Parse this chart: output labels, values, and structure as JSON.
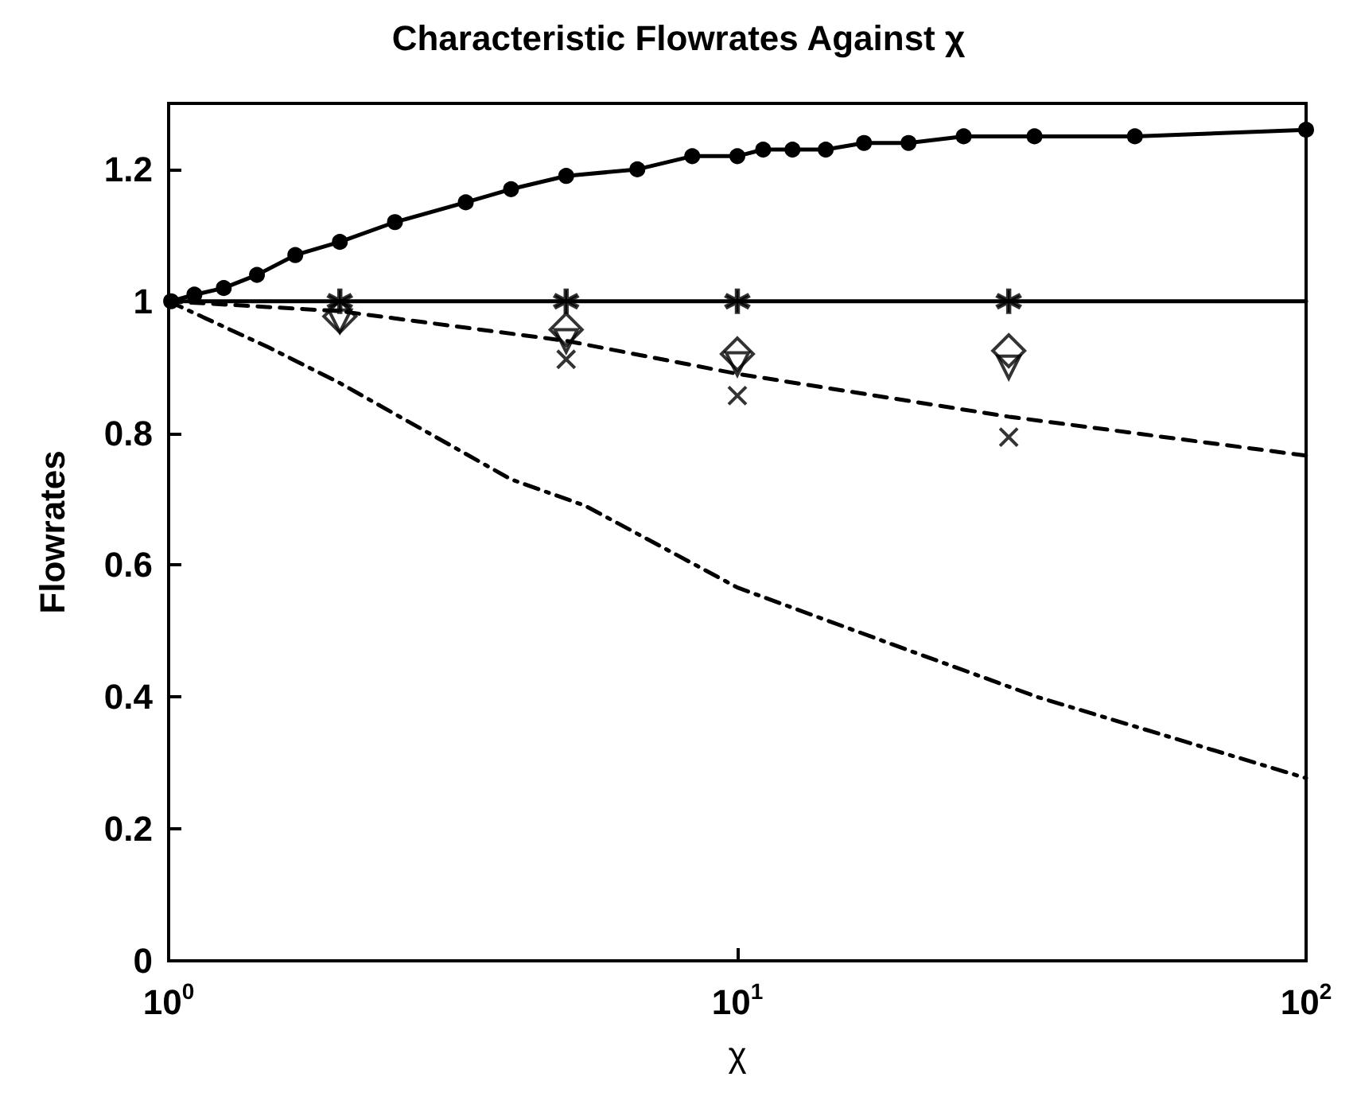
{
  "chart_data": {
    "type": "line",
    "title": "Characteristic Flowrates Against χ",
    "xlabel": "χ",
    "ylabel": "Flowrates",
    "log": "x",
    "xlim": [
      1,
      100
    ],
    "xticks": [
      {
        "value": 1,
        "label": "10$^{0}$"
      },
      {
        "value": 10,
        "label": "10$^{1}$"
      },
      {
        "value": 100,
        "label": "10$^{2}$"
      }
    ],
    "ylim": [
      0,
      1.3
    ],
    "yticks": [
      0,
      0.2,
      0.4,
      0.6,
      0.8,
      1,
      1.2
    ],
    "grid": false,
    "series": [
      {
        "color": "#000000",
        "marker": "circle",
        "line_style": "solid",
        "x": [
          1.01,
          1.11,
          1.25,
          1.43,
          1.67,
          2,
          2.5,
          3.33,
          4,
          5,
          6.67,
          8.33,
          10,
          11.1,
          12.5,
          14.3,
          16.7,
          20,
          25,
          33.3,
          50,
          100
        ],
        "values": [
          1.0,
          1.01,
          1.02,
          1.04,
          1.07,
          1.09,
          1.12,
          1.15,
          1.17,
          1.19,
          1.2,
          1.22,
          1.22,
          1.23,
          1.23,
          1.23,
          1.24,
          1.24,
          1.25,
          1.25,
          1.25,
          1.26
        ]
      },
      {
        "color": "#000000",
        "marker": "none",
        "line_style": "solid",
        "x": [
          1,
          100
        ],
        "values": [
          1,
          1
        ]
      },
      {
        "color": "#000000",
        "marker": "none",
        "line_style": "dashed",
        "x": [
          1,
          2,
          5,
          10,
          30,
          100
        ],
        "values": [
          1,
          0.985,
          0.94,
          0.89,
          0.825,
          0.766
        ]
      },
      {
        "color": "#000000",
        "marker": "none",
        "line_style": "dashdot",
        "x": [
          1,
          1.5,
          2,
          4,
          5.4,
          10,
          18.7,
          33.7,
          100
        ],
        "values": [
          1,
          0.93,
          0.876,
          0.73,
          0.69,
          0.566,
          0.48,
          0.4,
          0.277
        ]
      },
      {
        "type": "scatter",
        "color": "#000000",
        "marker": "star",
        "x": [
          2,
          5,
          10,
          30
        ],
        "values": [
          1,
          1,
          1,
          1
        ]
      },
      {
        "type": "scatter",
        "color": "#000000",
        "marker": "diamond",
        "x": [
          2,
          5,
          10,
          30
        ],
        "values": [
          0.977,
          0.957,
          0.92,
          0.925
        ]
      },
      {
        "type": "scatter",
        "color": "#000000",
        "marker": "triangle",
        "x": [
          2,
          5,
          10,
          30
        ],
        "values": [
          0.97,
          0.94,
          0.905,
          0.9
        ]
      },
      {
        "type": "scatter",
        "color": "#000000",
        "marker": "cross",
        "x": [
          5,
          10,
          30
        ],
        "values": [
          0.912,
          0.857,
          0.794
        ]
      }
    ]
  }
}
